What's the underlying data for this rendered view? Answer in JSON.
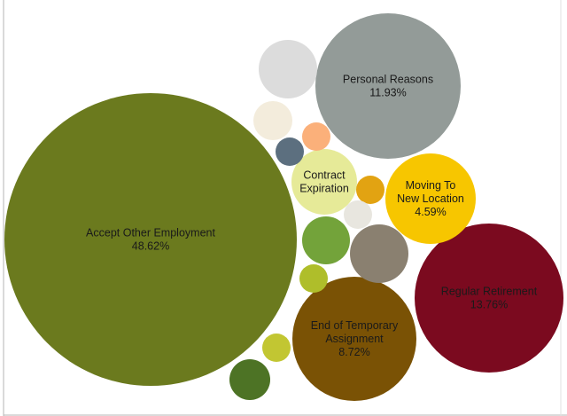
{
  "chart_data": {
    "type": "bubble",
    "title": "",
    "bubbles": [
      {
        "label": [
          "Accept Other Employment",
          "48.62%"
        ],
        "value": 48.62,
        "color": "#6b7a1e"
      },
      {
        "label": [
          "Regular Retirement",
          "13.76%"
        ],
        "value": 13.76,
        "color": "#7b0a1f"
      },
      {
        "label": [
          "Personal Reasons",
          "11.93%"
        ],
        "value": 11.93,
        "color": "#939b98"
      },
      {
        "label": [
          "End of Temporary",
          "Assignment",
          "8.72%"
        ],
        "value": 8.72,
        "color": "#7a5205"
      },
      {
        "label": [
          "Moving To",
          "New Location",
          "4.59%"
        ],
        "value": 4.59,
        "color": "#f7c600"
      },
      {
        "label": [
          "Contract",
          "Expiration"
        ],
        "color": "#e6ea98"
      },
      {
        "label": [],
        "color": "#dcdcdc"
      },
      {
        "label": [],
        "color": "#f3ecdc"
      },
      {
        "label": [],
        "color": "#fbb07a"
      },
      {
        "label": [],
        "color": "#5c6f7f"
      },
      {
        "label": [],
        "color": "#e2a312"
      },
      {
        "label": [],
        "color": "#e8e6df"
      },
      {
        "label": [],
        "color": "#73a33a"
      },
      {
        "label": [],
        "color": "#8a8070"
      },
      {
        "label": [],
        "color": "#afbe2a"
      },
      {
        "label": [],
        "color": "#c2c632"
      },
      {
        "label": [],
        "color": "#4d7325"
      }
    ]
  }
}
